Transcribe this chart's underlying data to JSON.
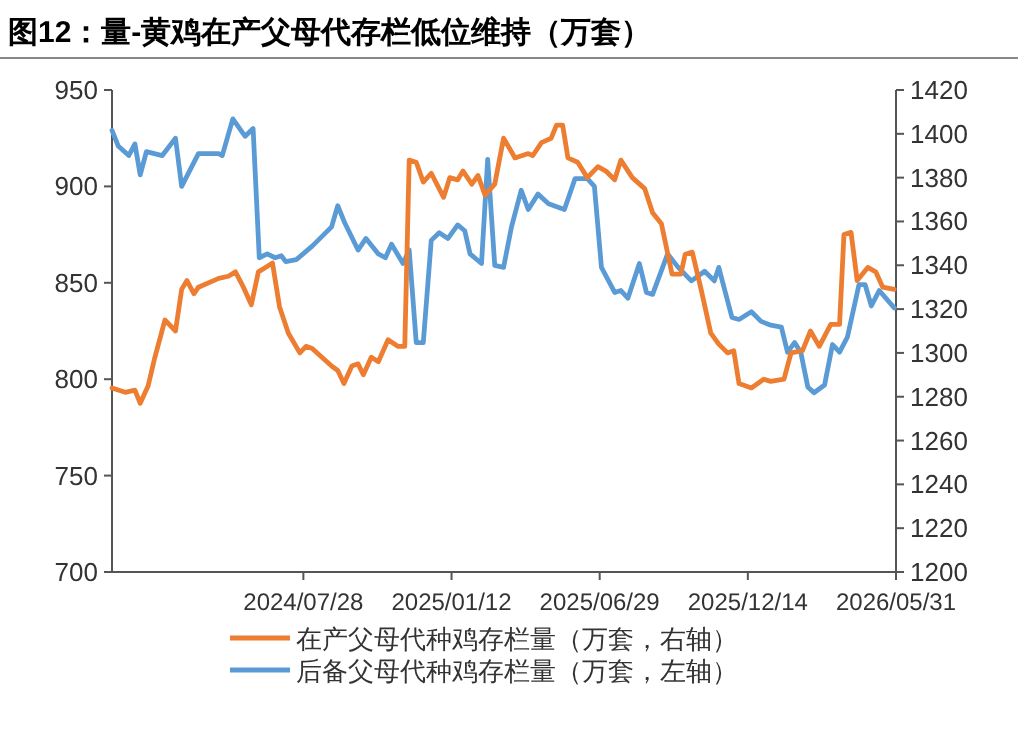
{
  "chart_data": {
    "type": "line",
    "title": "图12：量-黄鸡在产父母代存栏低位维持（万套）",
    "xlim": [
      "2023-12-24",
      "2026-05-31"
    ],
    "xticks": [
      {
        "value": "2024-07-28",
        "label": "2024/07/28"
      },
      {
        "value": "2025-01-12",
        "label": "2025/01/12"
      },
      {
        "value": "2025-06-29",
        "label": "2025/06/29"
      },
      {
        "value": "2025-12-14",
        "label": "2025/12/14"
      },
      {
        "value": "2026-05-31",
        "label": "2026/05/31"
      }
    ],
    "ylim": [
      700,
      950
    ],
    "yticks": [
      700,
      750,
      800,
      850,
      900,
      950
    ],
    "y2lim": [
      1200,
      1420
    ],
    "y2ticks": [
      1200,
      1220,
      1240,
      1260,
      1280,
      1300,
      1320,
      1340,
      1360,
      1380,
      1400,
      1420
    ],
    "legend": "bottom",
    "series": [
      {
        "name": "在产父母代种鸡存栏量（万套，右轴）",
        "color": "#ed7d31",
        "axis": "y2",
        "x": [
          "2023-12-24",
          "2024-01-08",
          "2024-01-19",
          "2024-01-25",
          "2024-02-03",
          "2024-02-10",
          "2024-02-22",
          "2024-03-05",
          "2024-03-12",
          "2024-03-18",
          "2024-03-26",
          "2024-03-31",
          "2024-04-23",
          "2024-05-04",
          "2024-05-12",
          "2024-05-21",
          "2024-05-30",
          "2024-06-07",
          "2024-06-15",
          "2024-06-23",
          "2024-07-01",
          "2024-07-11",
          "2024-07-24",
          "2024-07-31",
          "2024-08-07",
          "2024-08-18",
          "2024-08-29",
          "2024-09-05",
          "2024-09-12",
          "2024-09-21",
          "2024-09-28",
          "2024-10-04",
          "2024-10-13",
          "2024-10-21",
          "2024-11-01",
          "2024-11-12",
          "2024-11-20",
          "2024-11-25",
          "2024-12-03",
          "2024-12-11",
          "2024-12-20",
          "2025-01-03",
          "2025-01-10",
          "2025-01-19",
          "2025-01-25",
          "2025-02-04",
          "2025-02-11",
          "2025-02-19",
          "2025-03-02",
          "2025-03-12",
          "2025-03-25",
          "2025-04-09",
          "2025-04-14",
          "2025-04-24",
          "2025-05-05",
          "2025-05-11",
          "2025-05-18",
          "2025-05-24",
          "2025-06-04",
          "2025-06-15",
          "2025-06-27",
          "2025-07-06",
          "2025-07-16",
          "2025-07-23",
          "2025-08-05",
          "2025-08-19",
          "2025-08-28",
          "2025-09-07",
          "2025-09-19",
          "2025-09-29",
          "2025-10-04",
          "2025-10-12",
          "2025-10-22",
          "2025-11-02",
          "2025-11-11",
          "2025-11-21",
          "2025-11-28",
          "2025-12-04",
          "2025-12-18",
          "2026-01-01",
          "2026-01-09",
          "2026-01-24",
          "2026-02-01",
          "2026-02-14",
          "2026-02-23",
          "2026-03-05",
          "2026-03-18",
          "2026-03-28",
          "2026-04-02",
          "2026-04-10",
          "2026-04-17",
          "2026-04-29",
          "2026-05-08",
          "2026-05-16",
          "2026-05-29"
        ],
        "values": [
          1284,
          1282,
          1283,
          1277,
          1285,
          1297,
          1315,
          1310,
          1329,
          1333,
          1327,
          1330,
          1334,
          1335,
          1337,
          1330,
          1322,
          1337,
          1339,
          1341,
          1321,
          1309,
          1300,
          1303,
          1302,
          1298,
          1294,
          1292,
          1286,
          1294,
          1295,
          1290,
          1298,
          1296,
          1306,
          1303,
          1303,
          1388,
          1387,
          1378,
          1382,
          1371,
          1380,
          1379,
          1383,
          1377,
          1381,
          1372,
          1377,
          1398,
          1389,
          1391,
          1390,
          1396,
          1398,
          1404,
          1404,
          1389,
          1387,
          1380,
          1385,
          1383,
          1379,
          1388,
          1380,
          1375,
          1364,
          1359,
          1336,
          1336,
          1345,
          1346,
          1329,
          1309,
          1304,
          1300,
          1301,
          1286,
          1284,
          1288,
          1287,
          1288,
          1300,
          1301,
          1310,
          1303,
          1313,
          1313,
          1354,
          1355,
          1333,
          1339,
          1337,
          1330,
          1329
        ]
      },
      {
        "name": "后备父母代种鸡存栏量（万套，左轴）",
        "color": "#5b9bd5",
        "x": [
          "2023-12-24",
          "2023-12-31",
          "2024-01-12",
          "2024-01-19",
          "2024-01-25",
          "2024-02-01",
          "2024-02-19",
          "2024-03-05",
          "2024-03-12",
          "2024-03-31",
          "2024-04-23",
          "2024-04-27",
          "2024-05-09",
          "2024-05-23",
          "2024-06-01",
          "2024-06-08",
          "2024-06-17",
          "2024-06-26",
          "2024-07-03",
          "2024-07-08",
          "2024-07-20",
          "2024-08-07",
          "2024-08-29",
          "2024-09-05",
          "2024-09-13",
          "2024-09-28",
          "2024-10-07",
          "2024-10-21",
          "2024-10-29",
          "2024-11-05",
          "2024-11-18",
          "2024-11-25",
          "2024-12-03",
          "2024-12-11",
          "2024-12-20",
          "2024-12-29",
          "2025-01-08",
          "2025-01-19",
          "2025-01-27",
          "2025-02-02",
          "2025-02-15",
          "2025-02-22",
          "2025-03-02",
          "2025-03-12",
          "2025-03-21",
          "2025-04-01",
          "2025-04-09",
          "2025-04-20",
          "2025-05-02",
          "2025-05-20",
          "2025-06-01",
          "2025-06-15",
          "2025-06-23",
          "2025-07-01",
          "2025-07-16",
          "2025-07-23",
          "2025-07-31",
          "2025-08-13",
          "2025-08-21",
          "2025-08-28",
          "2025-09-14",
          "2025-09-26",
          "2025-10-11",
          "2025-10-26",
          "2025-11-06",
          "2025-11-11",
          "2025-11-26",
          "2025-12-04",
          "2025-12-18",
          "2025-12-29",
          "2026-01-09",
          "2026-01-21",
          "2026-01-28",
          "2026-02-05",
          "2026-02-12",
          "2026-02-20",
          "2026-02-27",
          "2026-03-11",
          "2026-03-20",
          "2026-03-28",
          "2026-04-06",
          "2026-04-19",
          "2026-04-26",
          "2026-05-03",
          "2026-05-12",
          "2026-05-29"
        ],
        "values": [
          929,
          921,
          916,
          922,
          906,
          918,
          916,
          925,
          900,
          917,
          917,
          916,
          935,
          926,
          930,
          863,
          865,
          863,
          864,
          861,
          862,
          869,
          879,
          890,
          881,
          867,
          873,
          865,
          863,
          870,
          860,
          867,
          819,
          819,
          872,
          876,
          873,
          880,
          877,
          865,
          860,
          914,
          859,
          858,
          879,
          898,
          888,
          896,
          891,
          888,
          904,
          904,
          900,
          858,
          845,
          846,
          842,
          860,
          845,
          844,
          865,
          858,
          851,
          856,
          851,
          858,
          832,
          831,
          835,
          830,
          828,
          827,
          814,
          819,
          814,
          796,
          793,
          797,
          818,
          814,
          822,
          849,
          849,
          838,
          846,
          837
        ]
      }
    ]
  }
}
